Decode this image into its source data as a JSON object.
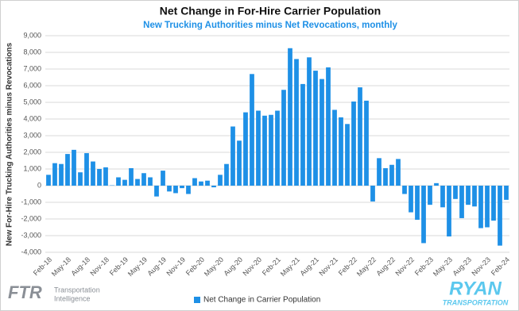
{
  "chart_data": {
    "type": "bar",
    "title": "Net Change in For-Hire Carrier Population",
    "subtitle": "New Trucking Authorities minus Net Revocations, monthly",
    "y_label": "New For-Hire Trucking Authorities minus Revocations",
    "categories": [
      "Feb-18",
      null,
      null,
      "May-18",
      null,
      null,
      "Aug-18",
      null,
      null,
      "Nov-18",
      null,
      null,
      "Feb-19",
      null,
      null,
      "May-19",
      null,
      null,
      "Aug-19",
      null,
      null,
      "Nov-19",
      null,
      null,
      "Feb-20",
      null,
      null,
      "May-20",
      null,
      null,
      "Aug-20",
      null,
      null,
      "Nov-20",
      null,
      null,
      "Feb-21",
      null,
      null,
      "May-21",
      null,
      null,
      "Aug-21",
      null,
      null,
      "Nov-21",
      null,
      null,
      "Feb-22",
      null,
      null,
      "May-22",
      null,
      null,
      "Aug-22",
      null,
      null,
      "Nov-22",
      null,
      null,
      "Feb-23",
      null,
      null,
      "May-23",
      null,
      null,
      "Aug-23",
      null,
      null,
      "Nov-23",
      null,
      null,
      "Feb-24"
    ],
    "series": [
      {
        "name": "Net Change in Carrier Population",
        "color": "#1e90e6",
        "values": [
          650,
          1350,
          1300,
          1900,
          2150,
          800,
          1950,
          1450,
          1000,
          1100,
          20,
          500,
          350,
          1050,
          400,
          750,
          500,
          -650,
          900,
          -350,
          -450,
          -150,
          -500,
          450,
          250,
          300,
          -100,
          650,
          1300,
          3550,
          2700,
          4400,
          6700,
          4500,
          4200,
          4250,
          4500,
          5750,
          8250,
          7600,
          6100,
          7700,
          6900,
          6400,
          7100,
          4550,
          4100,
          3700,
          5050,
          5900,
          5100,
          -950,
          1650,
          1050,
          1250,
          1600,
          -500,
          -1600,
          -2050,
          -3450,
          -1150,
          150,
          -1300,
          -3050,
          -800,
          -1950,
          -1150,
          -1250,
          -2550,
          -2500,
          -2100,
          -3600,
          -850
        ]
      }
    ],
    "ylim": [
      -4000,
      9000
    ],
    "yticks": [
      {
        "value": -4000,
        "label": "-4,000"
      },
      {
        "value": -3000,
        "label": "-3,000"
      },
      {
        "value": -2000,
        "label": "-2,000"
      },
      {
        "value": -1000,
        "label": "-1,000"
      },
      0,
      {
        "value": 1000,
        "label": "1,000"
      },
      {
        "value": 2000,
        "label": "2,000"
      },
      {
        "value": 3000,
        "label": "3,000"
      },
      {
        "value": 4000,
        "label": "4,000"
      },
      {
        "value": 5000,
        "label": "5,000"
      },
      {
        "value": 6000,
        "label": "6,000"
      },
      {
        "value": 7000,
        "label": "7,000"
      },
      {
        "value": 8000,
        "label": "8,000"
      },
      {
        "value": 9000,
        "label": "9,000"
      }
    ],
    "grid": true,
    "legend": "bottom"
  },
  "logos": {
    "left": "FTR",
    "left_sub1": "Transportation",
    "left_sub2": "Intelligence",
    "right": "RYAN",
    "right_sub": "TRANSPORTATION"
  }
}
